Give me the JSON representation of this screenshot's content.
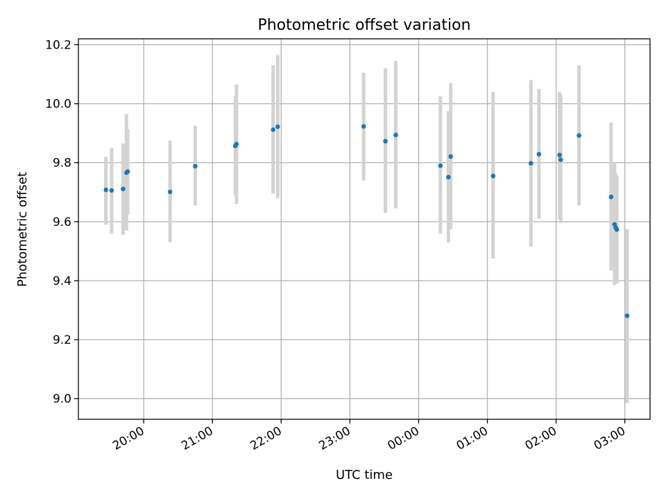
{
  "chart_data": {
    "type": "scatter",
    "title": "Photometric offset variation",
    "xlabel": "UTC time",
    "ylabel": "Photometric offset",
    "xlim": [
      "19:03",
      "03:22"
    ],
    "ylim": [
      8.93,
      10.22
    ],
    "grid": true,
    "xticks": [
      "20:00",
      "21:00",
      "22:00",
      "23:00",
      "00:00",
      "01:00",
      "02:00",
      "03:00"
    ],
    "yticks": [
      9.0,
      9.2,
      9.4,
      9.6,
      9.8,
      10.0,
      10.2
    ],
    "colors": {
      "point": "#1f77b4",
      "errorbar": "#d3d3d3"
    },
    "points": [
      {
        "t": "19:27",
        "y": 9.708,
        "lo": 9.59,
        "hi": 9.82
      },
      {
        "t": "19:32",
        "y": 9.706,
        "lo": 9.56,
        "hi": 9.85
      },
      {
        "t": "19:42",
        "y": 9.711,
        "lo": 9.555,
        "hi": 9.865
      },
      {
        "t": "19:45",
        "y": 9.766,
        "lo": 9.57,
        "hi": 9.965
      },
      {
        "t": "19:46",
        "y": 9.77,
        "lo": 9.625,
        "hi": 9.915
      },
      {
        "t": "20:23",
        "y": 9.701,
        "lo": 9.53,
        "hi": 9.875
      },
      {
        "t": "20:45",
        "y": 9.788,
        "lo": 9.655,
        "hi": 9.925
      },
      {
        "t": "21:20",
        "y": 9.857,
        "lo": 9.69,
        "hi": 10.025
      },
      {
        "t": "21:21",
        "y": 9.863,
        "lo": 9.66,
        "hi": 10.065
      },
      {
        "t": "21:53",
        "y": 9.912,
        "lo": 9.695,
        "hi": 10.13
      },
      {
        "t": "21:57",
        "y": 9.922,
        "lo": 9.68,
        "hi": 10.165
      },
      {
        "t": "23:12",
        "y": 9.923,
        "lo": 9.74,
        "hi": 10.105
      },
      {
        "t": "23:31",
        "y": 9.873,
        "lo": 9.63,
        "hi": 10.12
      },
      {
        "t": "23:40",
        "y": 9.894,
        "lo": 9.645,
        "hi": 10.145
      },
      {
        "t": "00:19",
        "y": 9.79,
        "lo": 9.56,
        "hi": 10.025
      },
      {
        "t": "00:26",
        "y": 9.751,
        "lo": 9.53,
        "hi": 9.975
      },
      {
        "t": "00:28",
        "y": 9.821,
        "lo": 9.575,
        "hi": 10.07
      },
      {
        "t": "01:05",
        "y": 9.755,
        "lo": 9.475,
        "hi": 10.04
      },
      {
        "t": "01:38",
        "y": 9.798,
        "lo": 9.515,
        "hi": 10.08
      },
      {
        "t": "01:45",
        "y": 9.829,
        "lo": 9.61,
        "hi": 10.05
      },
      {
        "t": "02:03",
        "y": 9.826,
        "lo": 9.61,
        "hi": 10.04
      },
      {
        "t": "02:04",
        "y": 9.81,
        "lo": 9.595,
        "hi": 10.03
      },
      {
        "t": "02:20",
        "y": 9.892,
        "lo": 9.655,
        "hi": 10.13
      },
      {
        "t": "02:48",
        "y": 9.684,
        "lo": 9.435,
        "hi": 9.935
      },
      {
        "t": "02:51",
        "y": 9.591,
        "lo": 9.385,
        "hi": 9.8
      },
      {
        "t": "02:52",
        "y": 9.58,
        "lo": 9.395,
        "hi": 9.765
      },
      {
        "t": "02:53",
        "y": 9.573,
        "lo": 9.39,
        "hi": 9.755
      },
      {
        "t": "03:02",
        "y": 9.281,
        "lo": 8.985,
        "hi": 9.575
      }
    ]
  }
}
